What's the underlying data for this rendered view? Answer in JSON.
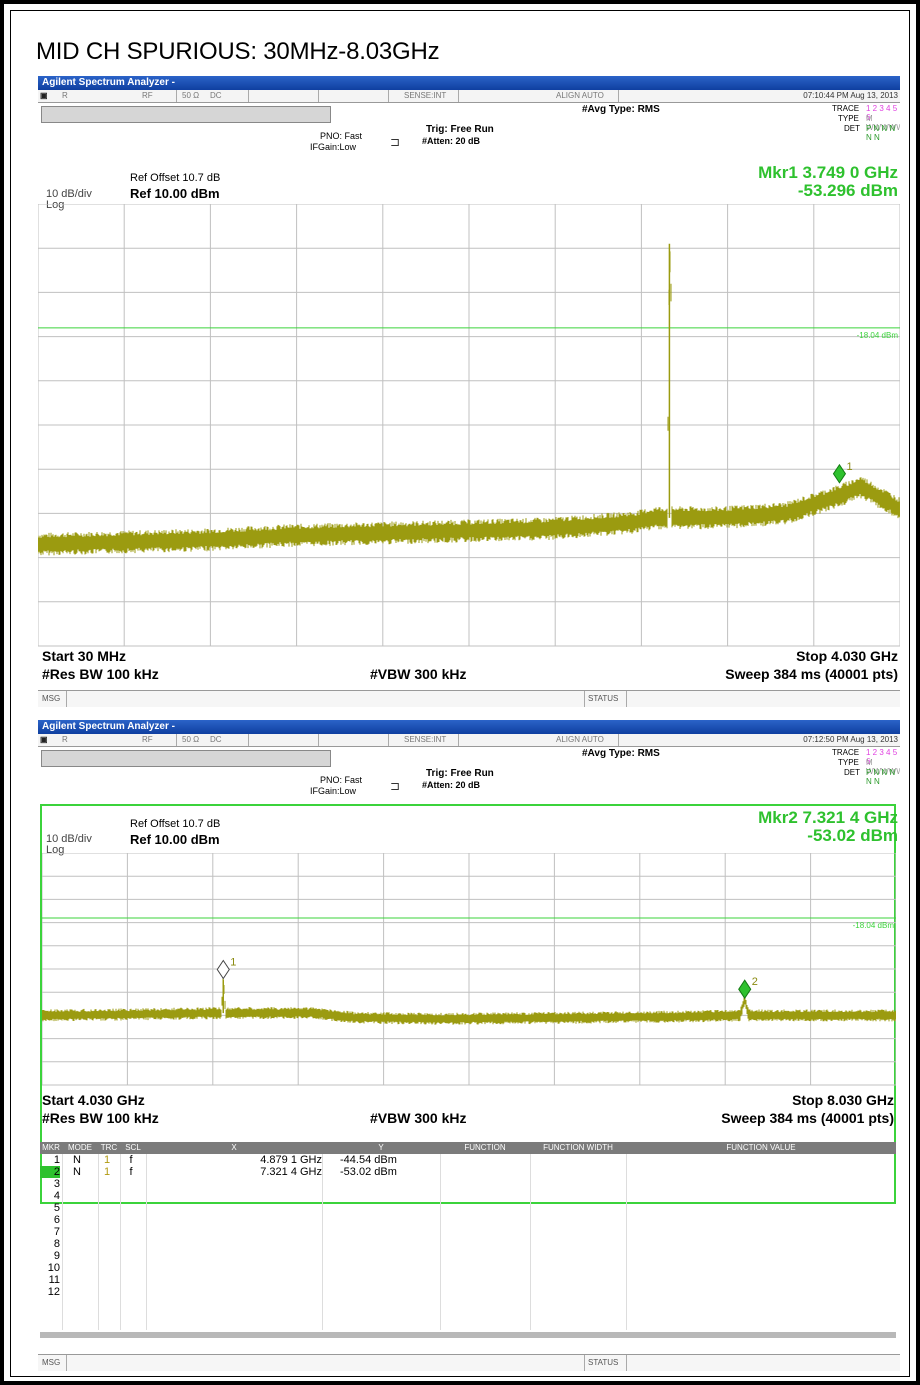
{
  "page_title": "MID CH SPURIOUS:  30MHz-8.03GHz",
  "colors": {
    "trace": "#9b9b10",
    "grid": "#c0c0c0",
    "threshold": "#3bd33b",
    "marker": "#2ec12e",
    "title_bar": "#1a4fb8"
  },
  "panels": [
    {
      "app_title": "Agilent Spectrum Analyzer -",
      "status": {
        "mode": "R",
        "rf": "RF",
        "impedance": "50 Ω",
        "coupling": "DC",
        "sense": "SENSE:INT",
        "align": "ALIGN AUTO",
        "timestamp": "07:10:44 PM Aug 13, 2013"
      },
      "avg_type": "#Avg Type: RMS",
      "trace_label": "TRACE",
      "trace_nums": "1 2 3 4 5 6",
      "type_label": "TYPE",
      "type_val": "M WWWWW",
      "det_label": "DET",
      "det_val": "P N N N N N",
      "pno": "PNO: Fast",
      "ifgain": "IFGain:Low",
      "trig": "Trig: Free Run",
      "atten": "#Atten: 20 dB",
      "ref_offset": "Ref Offset 10.7 dB",
      "scale": "10 dB/div",
      "ref_level": "Ref 10.00 dBm",
      "log": "Log",
      "marker_freq": "Mkr1 3.749 0 GHz",
      "marker_amp": "-53.296 dBm",
      "threshold_label": "-18.04 dBm",
      "start": "Start 30 MHz",
      "stop": "Stop 4.030 GHz",
      "rbw": "#Res BW 100 kHz",
      "vbw": "#VBW 300 kHz",
      "sweep": "Sweep  384 ms (40001 pts)",
      "msg": "MSG",
      "status_label": "STATUS"
    },
    {
      "app_title": "Agilent Spectrum Analyzer -",
      "status": {
        "mode": "R",
        "rf": "RF",
        "impedance": "50 Ω",
        "coupling": "DC",
        "sense": "SENSE:INT",
        "align": "ALIGN AUTO",
        "timestamp": "07:12:50 PM Aug 13, 2013"
      },
      "avg_type": "#Avg Type: RMS",
      "trace_label": "TRACE",
      "trace_nums": "1 2 3 4 5 6",
      "type_label": "TYPE",
      "type_val": "M WWWWW",
      "det_label": "DET",
      "det_val": "P N N N N N",
      "pno": "PNO: Fast",
      "ifgain": "IFGain:Low",
      "trig": "Trig: Free Run",
      "atten": "#Atten: 20 dB",
      "ref_offset": "Ref Offset 10.7 dB",
      "scale": "10 dB/div",
      "ref_level": "Ref 10.00 dBm",
      "log": "Log",
      "marker_freq": "Mkr2 7.321 4 GHz",
      "marker_amp": "-53.02 dBm",
      "threshold_label": "-18.04 dBm",
      "start": "Start 4.030 GHz",
      "stop": "Stop 8.030 GHz",
      "rbw": "#Res BW 100 kHz",
      "vbw": "#VBW 300 kHz",
      "sweep": "Sweep  384 ms (40001 pts)",
      "msg": "MSG",
      "status_label": "STATUS"
    }
  ],
  "marker_table": {
    "headers": [
      "MKR",
      "MODE",
      "TRC",
      "SCL",
      "X",
      "Y",
      "FUNCTION",
      "FUNCTION WIDTH",
      "FUNCTION VALUE"
    ],
    "rows": [
      {
        "n": "1",
        "mode": "N",
        "trc": "1",
        "scl": "f",
        "x": "4.879 1 GHz",
        "y": "-44.54 dBm"
      },
      {
        "n": "2",
        "mode": "N",
        "trc": "1",
        "scl": "f",
        "x": "7.321 4 GHz",
        "y": "-53.02 dBm"
      },
      {
        "n": "3"
      },
      {
        "n": "4"
      },
      {
        "n": "5"
      },
      {
        "n": "6"
      },
      {
        "n": "7"
      },
      {
        "n": "8"
      },
      {
        "n": "9"
      },
      {
        "n": "10"
      },
      {
        "n": "11"
      },
      {
        "n": "12"
      }
    ]
  },
  "chart_data": [
    {
      "type": "line",
      "xlabel": "",
      "ylabel": "",
      "xlim": [
        0.03,
        4.03
      ],
      "ylim": [
        -90,
        10
      ],
      "y_ticks": [
        "0.00",
        "-10.0",
        "-20.0",
        "-30.0",
        "-40.0",
        "-50.0",
        "-60.0",
        "-70.0",
        "-80.0"
      ],
      "threshold_dbm": -18.04,
      "series": [
        {
          "x": [
            0.03,
            0.4,
            0.8,
            1.2,
            1.6,
            2.0,
            2.4,
            2.8,
            2.9,
            2.95,
            2.96,
            3.0,
            3.2,
            3.5,
            3.75,
            3.85,
            4.03
          ],
          "y": [
            -67,
            -66.5,
            -66,
            -65,
            -64.5,
            -64,
            -63.5,
            -62,
            -61,
            -61,
            1,
            -61,
            -61,
            -60,
            -56,
            -54,
            -59
          ]
        }
      ],
      "markers": [
        {
          "label": "1",
          "x": 3.749,
          "y": -53.296,
          "active": true
        }
      ]
    },
    {
      "type": "line",
      "xlabel": "",
      "ylabel": "",
      "xlim": [
        4.03,
        8.03
      ],
      "ylim": [
        -90,
        10
      ],
      "y_ticks": [
        "0.00",
        "-10.0",
        "-20.0",
        "-30.0",
        "-40.0",
        "-50.0",
        "-60.0",
        "-70.0",
        "-80.0"
      ],
      "threshold_dbm": -18.04,
      "series": [
        {
          "x": [
            4.03,
            4.5,
            4.87,
            4.879,
            4.89,
            5.3,
            5.5,
            5.9,
            6.5,
            7.0,
            7.3,
            7.321,
            7.34,
            7.7,
            8.03
          ],
          "y": [
            -60,
            -59.5,
            -59,
            -44.54,
            -59,
            -59,
            -61,
            -61.5,
            -61,
            -60.5,
            -60,
            -53.02,
            -60,
            -60,
            -60
          ]
        }
      ],
      "markers": [
        {
          "label": "1",
          "x": 4.8791,
          "y": -44.54,
          "active": false
        },
        {
          "label": "2",
          "x": 7.3214,
          "y": -53.02,
          "active": true
        }
      ]
    }
  ]
}
